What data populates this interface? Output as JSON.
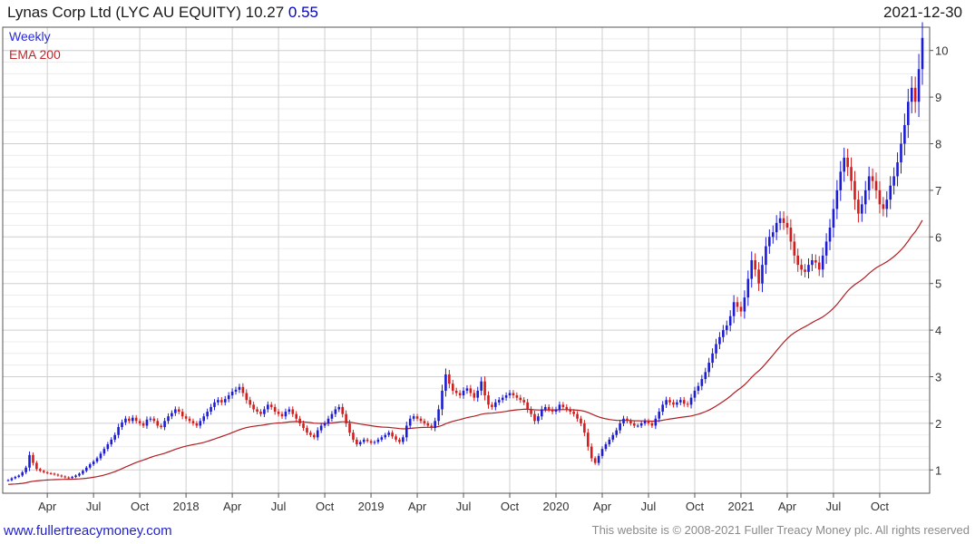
{
  "header": {
    "title": "Lynas Corp Ltd (LYC AU EQUITY) 10.27",
    "change": "0.55",
    "date": "2021-12-30"
  },
  "footer": {
    "website": "www.fullertreacymoney.com",
    "copyright": "This website is © 2008-2021 Fuller Treacy Money plc. All rights reserved"
  },
  "chart_data": {
    "type": "candlestick",
    "frequency": "weekly",
    "legend": [
      {
        "name": "Weekly",
        "color": "#2b2bd6"
      },
      {
        "name": "EMA 200",
        "color": "#b01e23"
      }
    ],
    "colors": {
      "up": "#1c1cd4",
      "down": "#d41c1c",
      "ema": "#b01e23",
      "grid": "#cfcfcf",
      "minor_grid": "#ececec"
    },
    "ylim": [
      0.5,
      10.5
    ],
    "y_ticks": [
      1,
      2,
      3,
      4,
      5,
      6,
      7,
      8,
      9,
      10
    ],
    "x_ticks": [
      {
        "label": "Apr",
        "week": 11
      },
      {
        "label": "Jul",
        "week": 24
      },
      {
        "label": "Oct",
        "week": 37
      },
      {
        "label": "2018",
        "week": 50
      },
      {
        "label": "Apr",
        "week": 63
      },
      {
        "label": "Jul",
        "week": 76
      },
      {
        "label": "Oct",
        "week": 89
      },
      {
        "label": "2019",
        "week": 102
      },
      {
        "label": "Apr",
        "week": 115
      },
      {
        "label": "Jul",
        "week": 128
      },
      {
        "label": "Oct",
        "week": 141
      },
      {
        "label": "2020",
        "week": 154
      },
      {
        "label": "Apr",
        "week": 167
      },
      {
        "label": "Jul",
        "week": 180
      },
      {
        "label": "Oct",
        "week": 193
      },
      {
        "label": "2021",
        "week": 206
      },
      {
        "label": "Apr",
        "week": 219
      },
      {
        "label": "Jul",
        "week": 232
      },
      {
        "label": "Oct",
        "week": 245
      }
    ],
    "weeks_total": 258,
    "close": [
      0.78,
      0.82,
      0.85,
      0.88,
      0.95,
      1.05,
      1.32,
      1.15,
      1.02,
      0.98,
      0.95,
      0.93,
      0.92,
      0.9,
      0.88,
      0.86,
      0.84,
      0.83,
      0.85,
      0.88,
      0.92,
      0.98,
      1.05,
      1.12,
      1.18,
      1.25,
      1.35,
      1.45,
      1.55,
      1.65,
      1.75,
      1.92,
      2.02,
      2.1,
      2.05,
      2.12,
      2.05,
      2.0,
      1.95,
      2.08,
      2.1,
      2.05,
      1.95,
      1.92,
      2.05,
      2.15,
      2.22,
      2.3,
      2.25,
      2.15,
      2.1,
      2.05,
      2.0,
      1.95,
      2.05,
      2.15,
      2.25,
      2.35,
      2.45,
      2.5,
      2.45,
      2.52,
      2.6,
      2.68,
      2.72,
      2.78,
      2.65,
      2.5,
      2.4,
      2.3,
      2.25,
      2.2,
      2.3,
      2.4,
      2.35,
      2.25,
      2.2,
      2.15,
      2.25,
      2.3,
      2.2,
      2.1,
      2.0,
      1.9,
      1.8,
      1.75,
      1.7,
      1.85,
      1.95,
      2.0,
      2.1,
      2.2,
      2.3,
      2.35,
      2.2,
      2.0,
      1.8,
      1.65,
      1.55,
      1.6,
      1.65,
      1.62,
      1.58,
      1.6,
      1.65,
      1.7,
      1.75,
      1.8,
      1.72,
      1.65,
      1.6,
      1.7,
      1.95,
      2.1,
      2.15,
      2.1,
      2.05,
      2.0,
      1.95,
      1.9,
      2.05,
      2.3,
      2.7,
      3.05,
      2.85,
      2.7,
      2.65,
      2.6,
      2.7,
      2.75,
      2.65,
      2.55,
      2.7,
      2.9,
      2.6,
      2.4,
      2.35,
      2.45,
      2.5,
      2.55,
      2.6,
      2.65,
      2.6,
      2.55,
      2.5,
      2.45,
      2.3,
      2.2,
      2.05,
      2.15,
      2.3,
      2.35,
      2.3,
      2.25,
      2.3,
      2.4,
      2.35,
      2.3,
      2.25,
      2.2,
      2.1,
      2.0,
      1.8,
      1.5,
      1.25,
      1.15,
      1.3,
      1.45,
      1.55,
      1.65,
      1.75,
      1.85,
      2.0,
      2.1,
      2.05,
      2.0,
      1.95,
      1.95,
      2.0,
      2.05,
      2.0,
      1.95,
      2.1,
      2.25,
      2.4,
      2.5,
      2.45,
      2.4,
      2.45,
      2.5,
      2.42,
      2.4,
      2.55,
      2.7,
      2.8,
      2.95,
      3.1,
      3.3,
      3.5,
      3.7,
      3.85,
      4.0,
      4.1,
      4.3,
      4.6,
      4.5,
      4.4,
      4.7,
      5.1,
      5.5,
      5.3,
      5.0,
      5.4,
      5.8,
      6.0,
      6.1,
      6.3,
      6.4,
      6.3,
      6.2,
      5.9,
      5.6,
      5.4,
      5.3,
      5.25,
      5.4,
      5.5,
      5.45,
      5.3,
      5.6,
      5.9,
      6.2,
      6.6,
      7.0,
      7.4,
      7.7,
      7.5,
      7.2,
      6.8,
      6.5,
      6.7,
      7.0,
      7.3,
      7.2,
      7.0,
      6.7,
      6.6,
      6.8,
      7.1,
      7.3,
      7.6,
      8.0,
      8.4,
      8.9,
      9.2,
      8.9,
      9.6,
      10.27
    ]
  }
}
